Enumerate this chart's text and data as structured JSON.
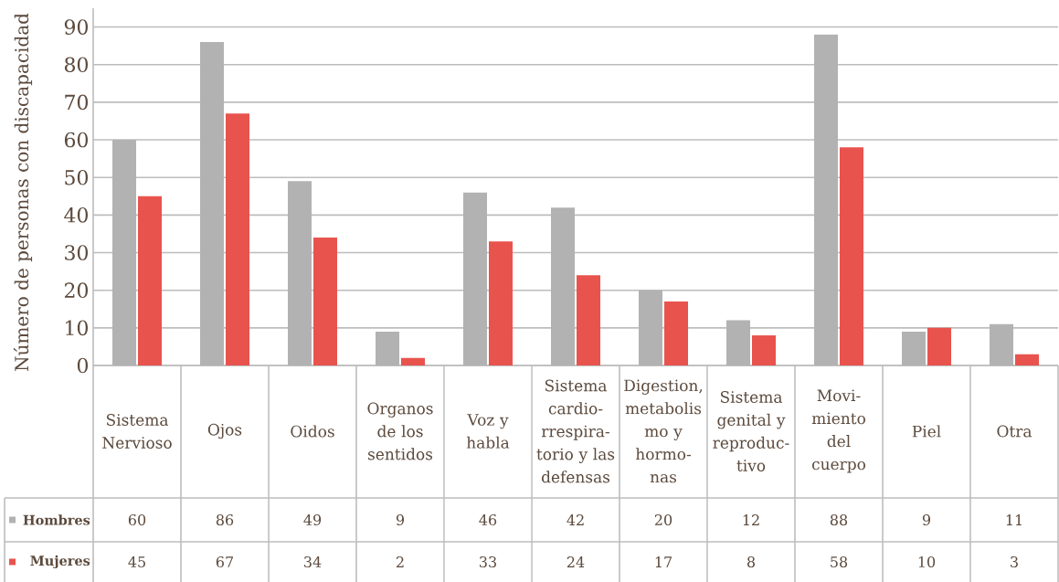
{
  "chart_data": {
    "type": "bar",
    "ylabel": "Número de personas con discapacidad",
    "categories": [
      "Sistema Nervioso",
      "Ojos",
      "Oidos",
      "Organos de los sentidos",
      "Voz y habla",
      "Sistema cardio-rrespira-torio y las defensas",
      "Digestion, metabolis mo y hormo-nas",
      "Sistema genital y reproduc-tivo",
      "Movi-miento del cuerpo",
      "Piel",
      "Otra"
    ],
    "series": [
      {
        "name": "Hombres",
        "color": "#b2b2b2",
        "values": [
          60,
          86,
          49,
          9,
          46,
          42,
          20,
          12,
          88,
          9,
          11
        ]
      },
      {
        "name": "Mujeres",
        "color": "#e8534e",
        "values": [
          45,
          67,
          34,
          2,
          33,
          24,
          17,
          8,
          58,
          10,
          3
        ]
      }
    ],
    "ylim": [
      0,
      95
    ],
    "yticks": [
      0,
      10,
      20,
      30,
      40,
      50,
      60,
      70,
      80,
      90
    ],
    "grid": "y",
    "legend": "bottom left",
    "data_labels": true
  }
}
